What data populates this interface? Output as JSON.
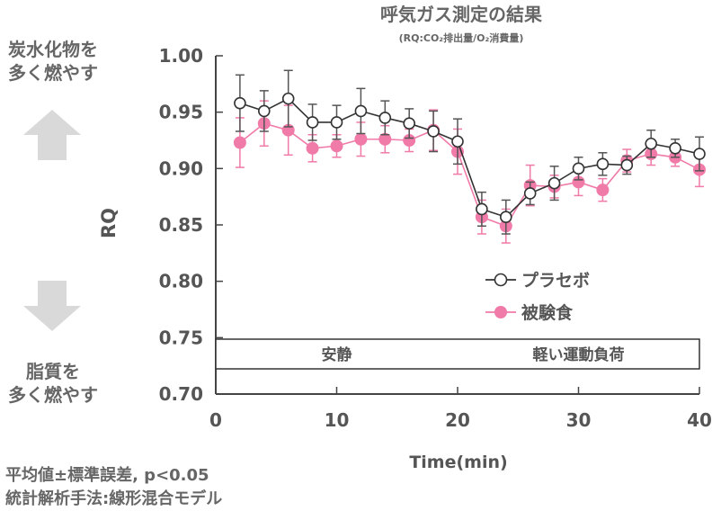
{
  "chart_data": {
    "type": "line",
    "title": "呼気ガス測定の結果",
    "subtitle": "(RQ:CO₂排出量/O₂消費量)",
    "xlabel": "Time(min)",
    "ylabel": "RQ",
    "xlim": [
      0,
      40
    ],
    "ylim": [
      0.7,
      1.0
    ],
    "x_ticks": [
      "0",
      "10",
      "20",
      "30",
      "40"
    ],
    "y_ticks": [
      "0.70",
      "0.75",
      "0.80",
      "0.85",
      "0.90",
      "0.95",
      "1.00"
    ],
    "x": [
      2,
      4,
      6,
      8,
      10,
      12,
      14,
      16,
      18,
      20,
      22,
      24,
      26,
      28,
      30,
      32,
      34,
      36,
      38,
      40
    ],
    "series": [
      {
        "name": "プラセボ",
        "color": "#333333",
        "marker": "open-circle",
        "values": [
          0.958,
          0.951,
          0.962,
          0.941,
          0.941,
          0.951,
          0.945,
          0.94,
          0.933,
          0.924,
          0.864,
          0.857,
          0.878,
          0.887,
          0.9,
          0.904,
          0.903,
          0.922,
          0.918,
          0.913
        ],
        "error": [
          0.025,
          0.018,
          0.025,
          0.016,
          0.015,
          0.02,
          0.015,
          0.013,
          0.018,
          0.02,
          0.015,
          0.015,
          0.01,
          0.015,
          0.01,
          0.01,
          0.008,
          0.012,
          0.008,
          0.015
        ]
      },
      {
        "name": "被験食",
        "color": "#f07aa8",
        "marker": "filled-circle",
        "values": [
          0.923,
          0.94,
          0.934,
          0.918,
          0.92,
          0.926,
          0.926,
          0.925,
          0.934,
          0.915,
          0.857,
          0.849,
          0.885,
          0.884,
          0.888,
          0.881,
          0.907,
          0.913,
          0.91,
          0.899
        ],
        "error": [
          0.022,
          0.02,
          0.022,
          0.012,
          0.01,
          0.015,
          0.012,
          0.01,
          0.018,
          0.02,
          0.015,
          0.015,
          0.018,
          0.01,
          0.012,
          0.01,
          0.01,
          0.01,
          0.008,
          0.015
        ]
      }
    ],
    "legend_position": "inside-right",
    "phases": [
      "安静",
      "軽い運動負荷"
    ],
    "grid": false
  },
  "side_labels": {
    "top": [
      "炭水化物を",
      "多く燃やす"
    ],
    "bottom": [
      "脂質を",
      "多く燃やす"
    ],
    "top_arrow_icon": "up-arrow-icon",
    "bottom_arrow_icon": "down-arrow-icon"
  },
  "notes": [
    "平均値±標準誤差, p<0.05",
    "統計解析手法:線形混合モデル"
  ]
}
